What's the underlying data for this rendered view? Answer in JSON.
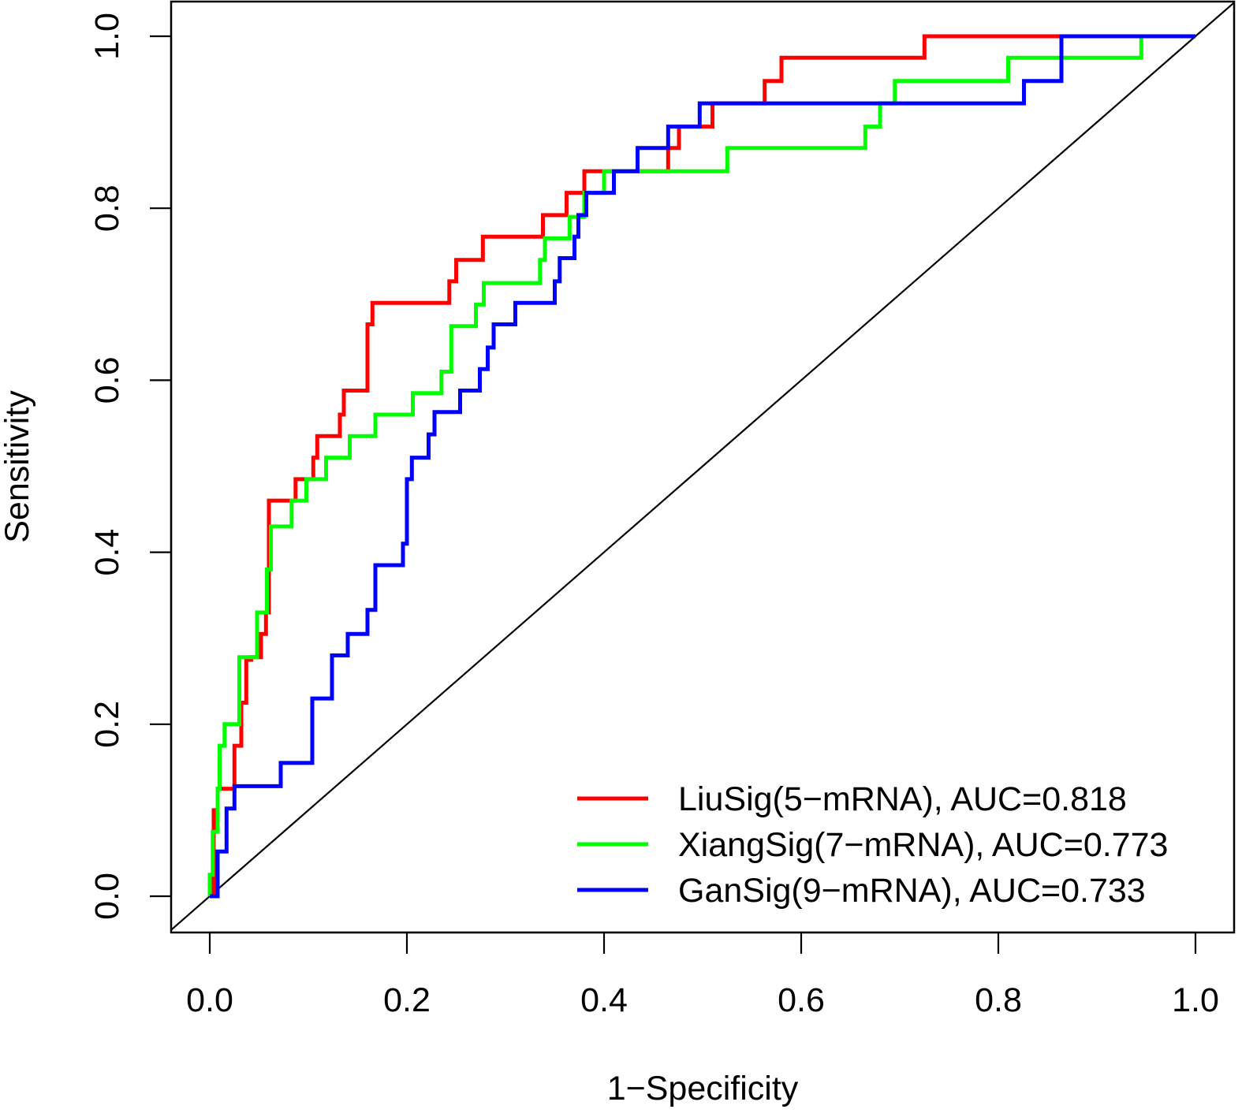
{
  "chart_data": {
    "type": "line",
    "title": "",
    "xlabel": "1−Specificity",
    "ylabel": "Sensitivity",
    "xlim": [
      0,
      1
    ],
    "ylim": [
      0,
      1
    ],
    "x_ticks": [
      "0.0",
      "0.2",
      "0.4",
      "0.6",
      "0.8",
      "1.0"
    ],
    "y_ticks": [
      "0.0",
      "0.2",
      "0.4",
      "0.6",
      "0.8",
      "1.0"
    ],
    "legend_position": "bottom-right",
    "reference_line": {
      "x": [
        0,
        1
      ],
      "y": [
        0,
        1
      ],
      "color": "#000000"
    },
    "series": [
      {
        "name": "LiuSig(5−mRNA), AUC=0.818",
        "color": "#ff0000",
        "x": [
          0.0,
          0.004,
          0.004,
          0.008,
          0.008,
          0.025,
          0.025,
          0.032,
          0.032,
          0.037,
          0.037,
          0.042,
          0.042,
          0.052,
          0.052,
          0.057,
          0.057,
          0.06,
          0.06,
          0.087,
          0.087,
          0.105,
          0.105,
          0.109,
          0.109,
          0.132,
          0.132,
          0.136,
          0.136,
          0.16,
          0.16,
          0.165,
          0.165,
          0.17,
          0.17,
          0.243,
          0.243,
          0.25,
          0.25,
          0.277,
          0.277,
          0.338,
          0.338,
          0.362,
          0.362,
          0.38,
          0.38,
          0.465,
          0.465,
          0.476,
          0.476,
          0.495,
          0.495,
          0.51,
          0.51,
          0.563,
          0.563,
          0.58,
          0.58,
          0.725,
          0.725,
          1.0
        ],
        "y": [
          0.0,
          0.0,
          0.1,
          0.1,
          0.125,
          0.125,
          0.175,
          0.175,
          0.225,
          0.225,
          0.275,
          0.275,
          0.278,
          0.278,
          0.305,
          0.305,
          0.33,
          0.33,
          0.46,
          0.46,
          0.485,
          0.485,
          0.51,
          0.51,
          0.535,
          0.535,
          0.56,
          0.56,
          0.588,
          0.588,
          0.665,
          0.665,
          0.69,
          0.69,
          0.69,
          0.69,
          0.715,
          0.715,
          0.74,
          0.74,
          0.767,
          0.767,
          0.792,
          0.792,
          0.818,
          0.818,
          0.843,
          0.843,
          0.87,
          0.87,
          0.895,
          0.895,
          0.895,
          0.895,
          0.922,
          0.922,
          0.948,
          0.948,
          0.975,
          0.975,
          1.0,
          1.0
        ]
      },
      {
        "name": "XiangSig(7−mRNA), AUC=0.773",
        "color": "#00ff00",
        "x": [
          0.0,
          0.0,
          0.003,
          0.003,
          0.008,
          0.008,
          0.01,
          0.01,
          0.015,
          0.015,
          0.03,
          0.03,
          0.048,
          0.048,
          0.058,
          0.058,
          0.062,
          0.062,
          0.083,
          0.083,
          0.098,
          0.098,
          0.118,
          0.118,
          0.142,
          0.142,
          0.168,
          0.168,
          0.206,
          0.206,
          0.235,
          0.235,
          0.245,
          0.245,
          0.27,
          0.27,
          0.278,
          0.278,
          0.335,
          0.335,
          0.34,
          0.34,
          0.365,
          0.365,
          0.38,
          0.38,
          0.4,
          0.4,
          0.525,
          0.525,
          0.665,
          0.665,
          0.68,
          0.68,
          0.695,
          0.695,
          0.81,
          0.81,
          0.945,
          0.945,
          1.0
        ],
        "y": [
          0.0,
          0.025,
          0.025,
          0.075,
          0.075,
          0.125,
          0.125,
          0.175,
          0.175,
          0.2,
          0.2,
          0.278,
          0.278,
          0.33,
          0.33,
          0.38,
          0.38,
          0.43,
          0.43,
          0.46,
          0.46,
          0.485,
          0.485,
          0.51,
          0.51,
          0.535,
          0.535,
          0.56,
          0.56,
          0.585,
          0.585,
          0.61,
          0.61,
          0.663,
          0.663,
          0.688,
          0.688,
          0.713,
          0.713,
          0.74,
          0.74,
          0.765,
          0.765,
          0.79,
          0.79,
          0.818,
          0.818,
          0.843,
          0.843,
          0.87,
          0.87,
          0.895,
          0.895,
          0.922,
          0.922,
          0.948,
          0.948,
          0.975,
          0.975,
          1.0,
          1.0
        ]
      },
      {
        "name": "GanSig(9−mRNA), AUC=0.733",
        "color": "#0000ff",
        "x": [
          0.0,
          0.008,
          0.008,
          0.017,
          0.017,
          0.025,
          0.025,
          0.072,
          0.072,
          0.104,
          0.104,
          0.124,
          0.124,
          0.14,
          0.14,
          0.16,
          0.16,
          0.168,
          0.168,
          0.196,
          0.196,
          0.2,
          0.2,
          0.205,
          0.205,
          0.222,
          0.222,
          0.228,
          0.228,
          0.254,
          0.254,
          0.274,
          0.274,
          0.282,
          0.282,
          0.288,
          0.288,
          0.31,
          0.31,
          0.35,
          0.35,
          0.355,
          0.355,
          0.37,
          0.37,
          0.374,
          0.374,
          0.382,
          0.382,
          0.41,
          0.41,
          0.434,
          0.434,
          0.465,
          0.465,
          0.497,
          0.497,
          0.826,
          0.826,
          0.864,
          0.864,
          1.0
        ],
        "y": [
          0.0,
          0.0,
          0.052,
          0.052,
          0.102,
          0.102,
          0.128,
          0.128,
          0.155,
          0.155,
          0.23,
          0.23,
          0.28,
          0.28,
          0.305,
          0.305,
          0.333,
          0.333,
          0.385,
          0.385,
          0.41,
          0.41,
          0.485,
          0.485,
          0.51,
          0.51,
          0.537,
          0.537,
          0.563,
          0.563,
          0.588,
          0.588,
          0.613,
          0.613,
          0.638,
          0.638,
          0.665,
          0.665,
          0.69,
          0.69,
          0.715,
          0.715,
          0.742,
          0.742,
          0.767,
          0.767,
          0.792,
          0.792,
          0.818,
          0.818,
          0.843,
          0.843,
          0.87,
          0.87,
          0.895,
          0.895,
          0.922,
          0.922,
          0.948,
          0.948,
          1.0,
          1.0
        ]
      }
    ]
  }
}
